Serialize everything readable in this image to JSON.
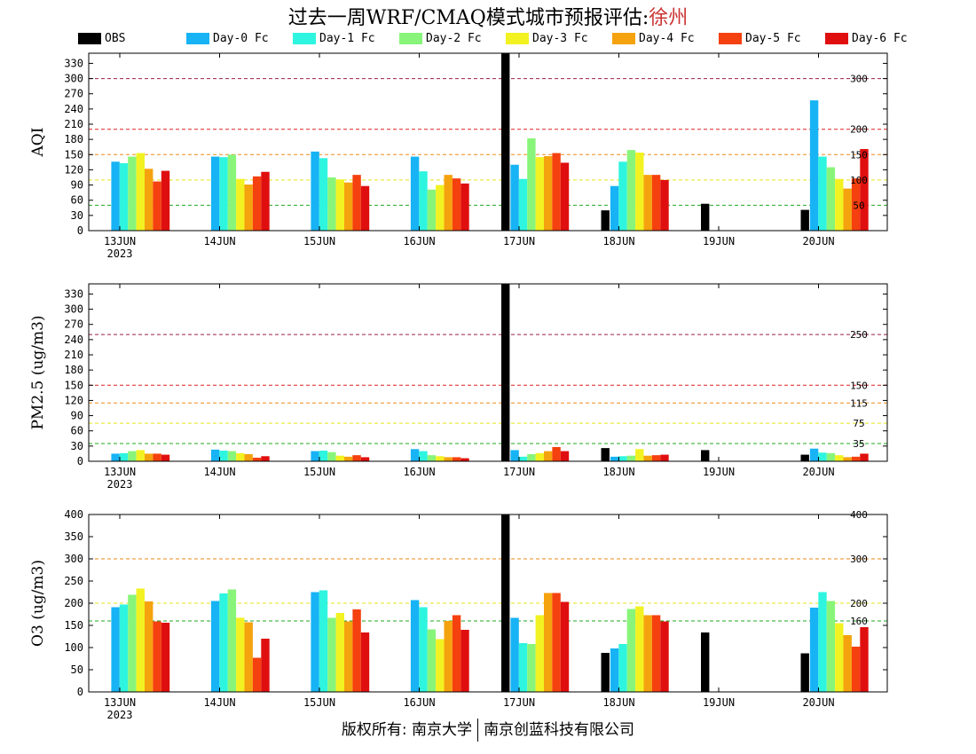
{
  "title": {
    "prefix": "过去一周WRF/CMAQ模式城市预报评估:",
    "city": "徐州"
  },
  "footer": {
    "left": "版权所有: 南京大学",
    "right": "南京创蓝科技有限公司"
  },
  "legend": [
    {
      "name": "OBS",
      "color": "#000000"
    },
    {
      "name": "Day-0 Fc",
      "color": "#17b3f5"
    },
    {
      "name": "Day-1 Fc",
      "color": "#2ef5df"
    },
    {
      "name": "Day-2 Fc",
      "color": "#88f57a"
    },
    {
      "name": "Day-3 Fc",
      "color": "#f2f222"
    },
    {
      "name": "Day-4 Fc",
      "color": "#f5a20f"
    },
    {
      "name": "Day-5 Fc",
      "color": "#f5400f"
    },
    {
      "name": "Day-6 Fc",
      "color": "#e00f0f"
    }
  ],
  "chart_data": [
    {
      "type": "bar",
      "ylabel": "AQI",
      "ylim": [
        0,
        350
      ],
      "yticks": [
        0,
        30,
        60,
        90,
        120,
        150,
        180,
        210,
        240,
        270,
        300,
        330
      ],
      "categories": [
        "13JUN",
        "14JUN",
        "15JUN",
        "16JUN",
        "17JUN",
        "18JUN",
        "19JUN",
        "20JUN"
      ],
      "first_year": "2023",
      "ref_lines": [
        {
          "value": 50,
          "label": "50",
          "color": "#22aa22"
        },
        {
          "value": 100,
          "label": "100",
          "color": "#e5e51a"
        },
        {
          "value": 150,
          "label": "150",
          "color": "#ee8a1a"
        },
        {
          "value": 200,
          "label": "200",
          "color": "#dd2222"
        },
        {
          "value": 300,
          "label": "300",
          "color": "#992244"
        }
      ],
      "series": [
        {
          "name": "OBS",
          "values": [
            null,
            null,
            null,
            null,
            350,
            40,
            53,
            41
          ]
        },
        {
          "name": "Day-0 Fc",
          "values": [
            136,
            146,
            156,
            146,
            130,
            88,
            null,
            257
          ]
        },
        {
          "name": "Day-1 Fc",
          "values": [
            133,
            145,
            143,
            117,
            102,
            136,
            null,
            146
          ]
        },
        {
          "name": "Day-2 Fc",
          "values": [
            146,
            150,
            105,
            81,
            182,
            159,
            null,
            125
          ]
        },
        {
          "name": "Day-3 Fc",
          "values": [
            153,
            102,
            101,
            90,
            145,
            154,
            null,
            102
          ]
        },
        {
          "name": "Day-4 Fc",
          "values": [
            122,
            91,
            95,
            110,
            147,
            110,
            null,
            83
          ]
        },
        {
          "name": "Day-5 Fc",
          "values": [
            97,
            107,
            110,
            103,
            153,
            110,
            null,
            103
          ]
        },
        {
          "name": "Day-6 Fc",
          "values": [
            118,
            116,
            88,
            93,
            134,
            100,
            null,
            161
          ]
        }
      ]
    },
    {
      "type": "bar",
      "ylabel": "PM2.5 (ug/m3)",
      "ylim": [
        0,
        350
      ],
      "yticks": [
        0,
        30,
        60,
        90,
        120,
        150,
        180,
        210,
        240,
        270,
        300,
        330
      ],
      "categories": [
        "13JUN",
        "14JUN",
        "15JUN",
        "16JUN",
        "17JUN",
        "18JUN",
        "19JUN",
        "20JUN"
      ],
      "first_year": "2023",
      "ref_lines": [
        {
          "value": 35,
          "label": "35",
          "color": "#22aa22"
        },
        {
          "value": 75,
          "label": "75",
          "color": "#e5e51a"
        },
        {
          "value": 115,
          "label": "115",
          "color": "#ee8a1a"
        },
        {
          "value": 150,
          "label": "150",
          "color": "#dd2222"
        },
        {
          "value": 250,
          "label": "250",
          "color": "#992244"
        }
      ],
      "series": [
        {
          "name": "OBS",
          "values": [
            null,
            null,
            null,
            null,
            350,
            26,
            22,
            13
          ]
        },
        {
          "name": "Day-0 Fc",
          "values": [
            15,
            23,
            20,
            24,
            22,
            9,
            null,
            25
          ]
        },
        {
          "name": "Day-1 Fc",
          "values": [
            16,
            21,
            21,
            20,
            9,
            10,
            null,
            17
          ]
        },
        {
          "name": "Day-2 Fc",
          "values": [
            20,
            20,
            18,
            12,
            14,
            11,
            null,
            16
          ]
        },
        {
          "name": "Day-3 Fc",
          "values": [
            22,
            16,
            11,
            10,
            16,
            24,
            null,
            12
          ]
        },
        {
          "name": "Day-4 Fc",
          "values": [
            15,
            14,
            9,
            8,
            20,
            11,
            null,
            8
          ]
        },
        {
          "name": "Day-5 Fc",
          "values": [
            15,
            7,
            12,
            8,
            28,
            12,
            null,
            9
          ]
        },
        {
          "name": "Day-6 Fc",
          "values": [
            13,
            10,
            8,
            6,
            20,
            13,
            null,
            15
          ]
        }
      ]
    },
    {
      "type": "bar",
      "ylabel": "O3 (ug/m3)",
      "ylim": [
        0,
        400
      ],
      "yticks": [
        0,
        50,
        100,
        150,
        200,
        250,
        300,
        350,
        400
      ],
      "categories": [
        "13JUN",
        "14JUN",
        "15JUN",
        "16JUN",
        "17JUN",
        "18JUN",
        "19JUN",
        "20JUN"
      ],
      "first_year": "2023",
      "ref_lines": [
        {
          "value": 160,
          "label": "160",
          "color": "#22aa22"
        },
        {
          "value": 200,
          "label": "200",
          "color": "#e5e51a"
        },
        {
          "value": 300,
          "label": "300",
          "color": "#ee8a1a"
        },
        {
          "value": 400,
          "label": "400",
          "color": "#dd2222"
        }
      ],
      "series": [
        {
          "name": "OBS",
          "values": [
            null,
            null,
            null,
            null,
            400,
            88,
            134,
            87
          ]
        },
        {
          "name": "Day-0 Fc",
          "values": [
            191,
            205,
            225,
            207,
            167,
            98,
            null,
            190
          ]
        },
        {
          "name": "Day-1 Fc",
          "values": [
            197,
            222,
            229,
            191,
            110,
            108,
            null,
            225
          ]
        },
        {
          "name": "Day-2 Fc",
          "values": [
            219,
            231,
            167,
            141,
            108,
            187,
            null,
            205
          ]
        },
        {
          "name": "Day-3 Fc",
          "values": [
            233,
            167,
            178,
            119,
            173,
            193,
            null,
            155
          ]
        },
        {
          "name": "Day-4 Fc",
          "values": [
            204,
            157,
            159,
            160,
            223,
            173,
            null,
            128
          ]
        },
        {
          "name": "Day-5 Fc",
          "values": [
            159,
            77,
            186,
            173,
            223,
            173,
            null,
            102
          ]
        },
        {
          "name": "Day-6 Fc",
          "values": [
            156,
            120,
            134,
            140,
            203,
            159,
            null,
            146
          ]
        }
      ]
    }
  ]
}
